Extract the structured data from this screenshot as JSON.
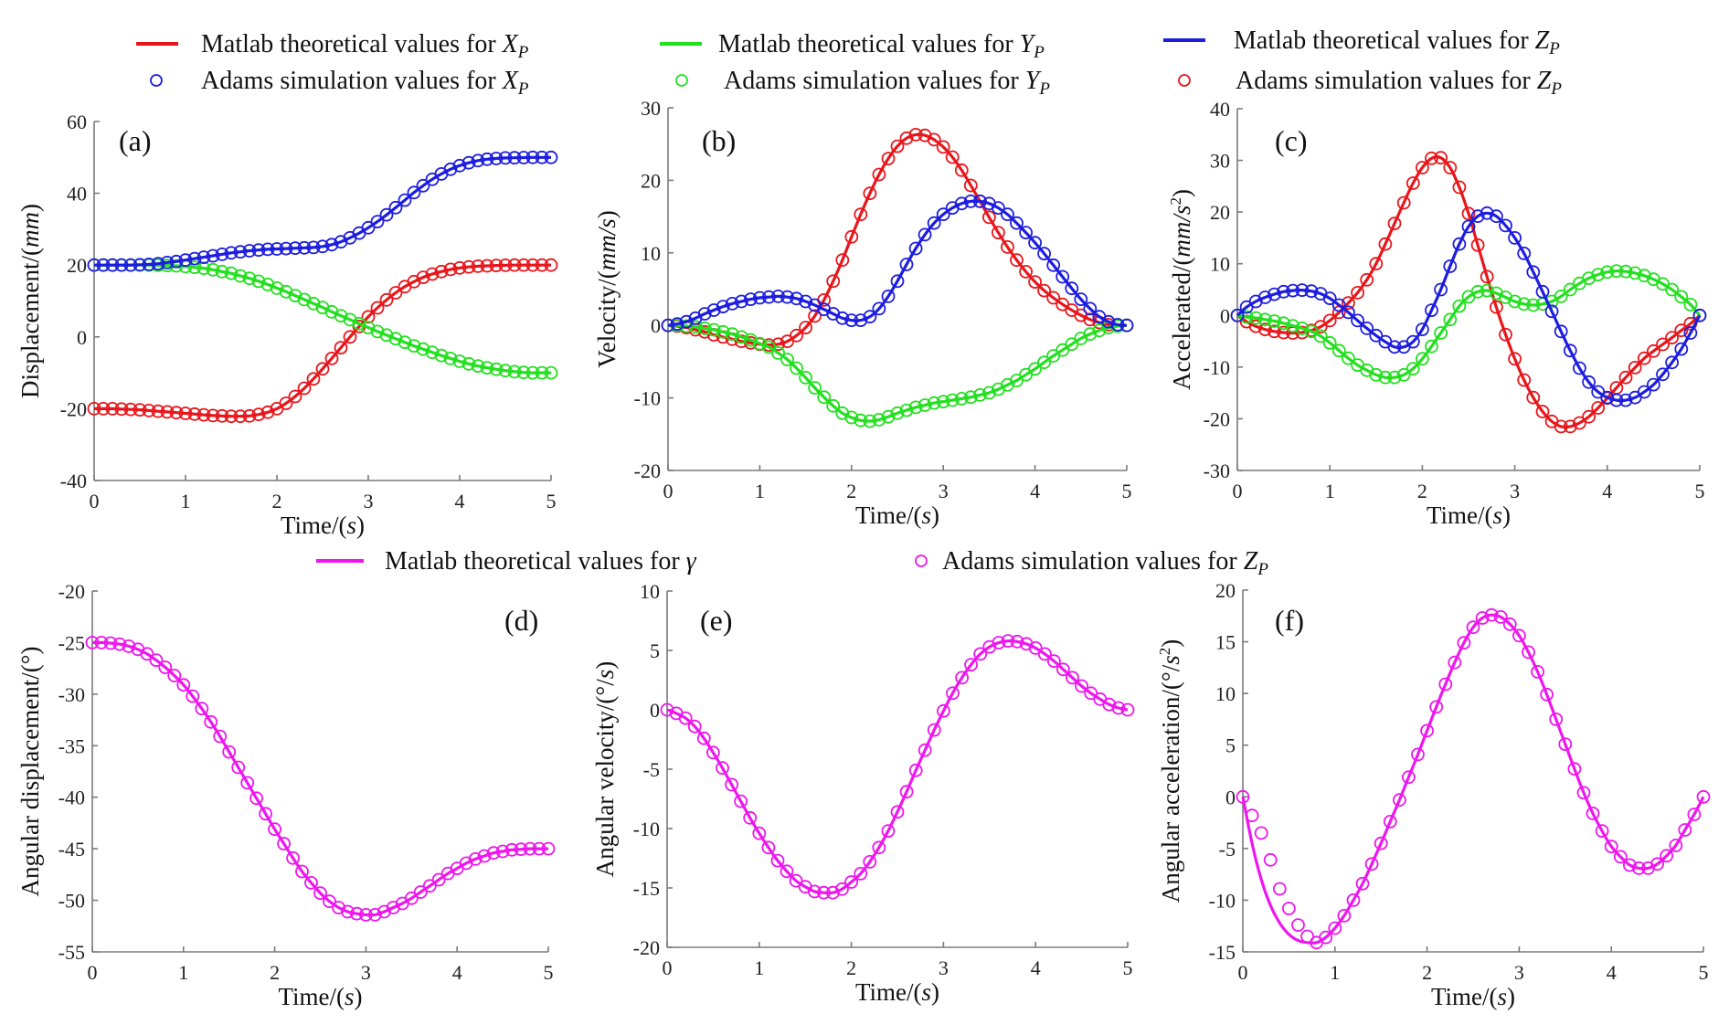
{
  "legend_top": [
    {
      "kind": "line",
      "color": "#e8161b",
      "text": "Matlab theoretical values for ",
      "var": "X",
      "sub": "P"
    },
    {
      "kind": "marker",
      "color": "#1d1de0",
      "text": "Adams simulation values for ",
      "var": "X",
      "sub": "P"
    },
    {
      "kind": "line",
      "color": "#22e01e",
      "text": "Matlab theoretical values for ",
      "var": "Y",
      "sub": "P"
    },
    {
      "kind": "marker",
      "color": "#22e01e",
      "text": "Adams simulation values for ",
      "var": "Y",
      "sub": "P"
    },
    {
      "kind": "line",
      "color": "#1d1de0",
      "text": "Matlab theoretical values for ",
      "var": "Z",
      "sub": "P"
    },
    {
      "kind": "marker",
      "color": "#e8161b",
      "text": "Adams simulation values for ",
      "var": "Z",
      "sub": "P"
    }
  ],
  "legend_bottom": [
    {
      "kind": "line",
      "color": "#ee16ee",
      "text": "Matlab theoretical values for ",
      "var": "γ",
      "sub": ""
    },
    {
      "kind": "marker",
      "color": "#ee16ee",
      "text": "Adams simulation values for ",
      "var": "Z",
      "sub": "P"
    }
  ],
  "chart_data": [
    {
      "id": "a",
      "type": "line",
      "panel_label": "(a)",
      "title": "",
      "xlabel": "Time/(s)",
      "ylabel": "Displacement/(mm)",
      "xlim": [
        0,
        5
      ],
      "ylim": [
        -40,
        60
      ],
      "xticks": [
        0,
        1,
        2,
        3,
        4,
        5
      ],
      "yticks": [
        -40,
        -20,
        0,
        20,
        40,
        60
      ],
      "x_step": 0.1,
      "series": [
        {
          "name": "X_P",
          "color": "#e8161b",
          "marker_color": "#e8161b",
          "values": [
            -20,
            -20,
            -20,
            -20.1,
            -20.2,
            -20.3,
            -20.5,
            -20.7,
            -20.9,
            -21.1,
            -21.3,
            -21.5,
            -21.7,
            -21.9,
            -22,
            -22.1,
            -22.1,
            -22,
            -21.6,
            -21,
            -20,
            -18.5,
            -16.6,
            -14.3,
            -11.7,
            -8.9,
            -6,
            -3,
            0,
            2.9,
            5.6,
            8.1,
            10.3,
            12.3,
            14,
            15.4,
            16.6,
            17.5,
            18.2,
            18.8,
            19.2,
            19.5,
            19.7,
            19.8,
            19.9,
            19.95,
            20,
            20,
            20,
            20,
            20
          ]
        },
        {
          "name": "Y_P",
          "color": "#22e01e",
          "marker_color": "#22e01e",
          "values": [
            20,
            20,
            20,
            20,
            20,
            20,
            20,
            19.95,
            19.9,
            19.8,
            19.6,
            19.4,
            19.1,
            18.7,
            18.2,
            17.7,
            17,
            16.3,
            15.5,
            14.6,
            13.6,
            12.6,
            11.5,
            10.4,
            9.3,
            8.2,
            7,
            5.9,
            4.8,
            3.7,
            2.6,
            1.5,
            0.5,
            -0.5,
            -1.5,
            -2.5,
            -3.4,
            -4.3,
            -5.2,
            -6,
            -6.8,
            -7.5,
            -8.1,
            -8.6,
            -9,
            -9.4,
            -9.7,
            -9.9,
            -10,
            -10,
            -10
          ]
        },
        {
          "name": "Z_P",
          "color": "#1d1de0",
          "marker_color": "#1d1de0",
          "values": [
            20,
            20,
            20,
            20,
            20,
            20.1,
            20.2,
            20.4,
            20.7,
            21,
            21.4,
            21.8,
            22.2,
            22.6,
            23,
            23.4,
            23.7,
            24,
            24.2,
            24.4,
            24.5,
            24.6,
            24.7,
            24.8,
            24.9,
            25.2,
            25.7,
            26.5,
            27.6,
            28.9,
            30.4,
            32.1,
            34,
            36,
            38.1,
            40.2,
            42.1,
            43.9,
            45.4,
            46.7,
            47.7,
            48.5,
            49.1,
            49.5,
            49.7,
            49.85,
            49.9,
            49.95,
            50,
            50,
            50
          ]
        }
      ]
    },
    {
      "id": "b",
      "type": "line",
      "panel_label": "(b)",
      "title": "",
      "xlabel": "Time/(s)",
      "ylabel": "Velocity/(mm/s)",
      "xlim": [
        0,
        5
      ],
      "ylim": [
        -20,
        30
      ],
      "xticks": [
        0,
        1,
        2,
        3,
        4,
        5
      ],
      "yticks": [
        -20,
        -10,
        0,
        10,
        20,
        30
      ],
      "x_step": 0.1,
      "series": [
        {
          "name": "X_P",
          "color": "#e8161b",
          "marker_color": "#e8161b",
          "values": [
            0,
            -0.1,
            -0.3,
            -0.6,
            -0.9,
            -1.3,
            -1.6,
            -1.9,
            -2.2,
            -2.4,
            -2.6,
            -2.7,
            -2.6,
            -2.2,
            -1.4,
            -0.3,
            1.3,
            3.5,
            6.1,
            9,
            12.2,
            15.3,
            18.2,
            20.8,
            23,
            24.7,
            25.8,
            26.3,
            26.2,
            25.6,
            24.6,
            23.2,
            21.4,
            19.3,
            17.1,
            14.9,
            12.8,
            10.8,
            9,
            7.4,
            6,
            4.8,
            3.8,
            2.9,
            2.1,
            1.4,
            0.8,
            0.4,
            0.1,
            0,
            0
          ]
        },
        {
          "name": "Y_P",
          "color": "#22e01e",
          "marker_color": "#22e01e",
          "values": [
            0,
            0,
            -0.1,
            -0.2,
            -0.4,
            -0.6,
            -0.9,
            -1.2,
            -1.6,
            -2,
            -2.5,
            -3,
            -3.8,
            -4.7,
            -5.9,
            -7.2,
            -8.6,
            -9.9,
            -11.1,
            -12.1,
            -12.7,
            -13.1,
            -13.2,
            -13,
            -12.6,
            -12.1,
            -11.7,
            -11.3,
            -11,
            -10.7,
            -10.5,
            -10.3,
            -10.1,
            -9.9,
            -9.6,
            -9.3,
            -8.8,
            -8.2,
            -7.6,
            -6.8,
            -6,
            -5.1,
            -4.2,
            -3.4,
            -2.6,
            -1.8,
            -1.2,
            -0.7,
            -0.3,
            -0.1,
            0
          ]
        },
        {
          "name": "Z_P",
          "color": "#1d1de0",
          "marker_color": "#1d1de0",
          "values": [
            0,
            0.2,
            0.5,
            1,
            1.6,
            2.1,
            2.6,
            3,
            3.3,
            3.6,
            3.8,
            3.9,
            4,
            3.9,
            3.7,
            3.3,
            2.8,
            2.2,
            1.6,
            1,
            0.7,
            0.7,
            1.2,
            2.3,
            4,
            6.1,
            8.4,
            10.6,
            12.5,
            14.1,
            15.3,
            16.2,
            16.8,
            17.1,
            17.1,
            16.8,
            16.2,
            15.3,
            14.1,
            12.8,
            11.4,
            9.9,
            8.3,
            6.7,
            5.1,
            3.6,
            2.3,
            1.2,
            0.5,
            0.1,
            0
          ]
        }
      ]
    },
    {
      "id": "c",
      "type": "line",
      "panel_label": "(c)",
      "title": "",
      "xlabel": "Time/(s)",
      "ylabel": "Accelerated/(mm/s²)",
      "xlim": [
        0,
        5
      ],
      "ylim": [
        -30,
        40
      ],
      "xticks": [
        0,
        1,
        2,
        3,
        4,
        5
      ],
      "yticks": [
        -30,
        -20,
        -10,
        0,
        10,
        20,
        30,
        40
      ],
      "x_step": 0.1,
      "series": [
        {
          "name": "X_P",
          "color": "#e8161b",
          "marker_color": "#e8161b",
          "values": [
            0,
            -1.2,
            -2.1,
            -2.7,
            -3.1,
            -3.3,
            -3.4,
            -3.3,
            -2.9,
            -2.2,
            -1,
            0.6,
            2.4,
            4.4,
            6.9,
            10,
            13.8,
            17.8,
            21.8,
            25.6,
            28.6,
            30.4,
            30.5,
            28.6,
            24.8,
            19.7,
            13.6,
            7.5,
            1.6,
            -3.7,
            -8.4,
            -12.5,
            -15.9,
            -18.6,
            -20.5,
            -21.5,
            -21.5,
            -20.8,
            -19.6,
            -17.9,
            -16,
            -14,
            -12,
            -10.1,
            -8.3,
            -6.9,
            -5.6,
            -4.3,
            -2.9,
            -1.6,
            0
          ]
        },
        {
          "name": "Y_P",
          "color": "#22e01e",
          "marker_color": "#22e01e",
          "values": [
            0,
            -0.3,
            -0.5,
            -0.8,
            -1.1,
            -1.5,
            -2,
            -2.5,
            -3.1,
            -4,
            -5.3,
            -6.8,
            -8.3,
            -9.6,
            -10.6,
            -11.5,
            -12,
            -12,
            -11.5,
            -10.3,
            -8.4,
            -6,
            -3.4,
            -0.8,
            1.8,
            3.6,
            4.6,
            4.8,
            4.3,
            3.5,
            2.7,
            2.2,
            2,
            2.2,
            2.7,
            3.7,
            5,
            6.2,
            7.2,
            7.9,
            8.4,
            8.6,
            8.5,
            8.2,
            7.7,
            7,
            6.1,
            5,
            3.6,
            2.1,
            0
          ]
        },
        {
          "name": "Z_P",
          "color": "#1d1de0",
          "marker_color": "#1d1de0",
          "values": [
            0,
            1.6,
            2.7,
            3.5,
            4.1,
            4.6,
            4.8,
            4.9,
            4.7,
            4.2,
            3.3,
            2,
            0.6,
            -1,
            -2.5,
            -3.9,
            -5.1,
            -6.1,
            -6.1,
            -5.1,
            -2.7,
            1,
            5,
            9.5,
            13.8,
            17.2,
            19.2,
            19.8,
            19.2,
            17.4,
            15,
            12,
            8.4,
            4.6,
            0.8,
            -3.1,
            -6.8,
            -10.2,
            -12.9,
            -14.8,
            -15.9,
            -16.4,
            -16.4,
            -15.9,
            -14.8,
            -13.4,
            -11.4,
            -9.1,
            -6.5,
            -3.4,
            0
          ]
        }
      ]
    },
    {
      "id": "d",
      "type": "line",
      "panel_label": "(d)",
      "title": "",
      "xlabel": "Time/(s)",
      "ylabel": "Angular displacement/(°)",
      "xlim": [
        0,
        5
      ],
      "ylim": [
        -55,
        -20
      ],
      "xticks": [
        0,
        1,
        2,
        3,
        4,
        5
      ],
      "yticks": [
        -55,
        -50,
        -45,
        -40,
        -35,
        -30,
        -25,
        -20
      ],
      "x_step": 0.1,
      "series": [
        {
          "name": "γ",
          "color": "#ee16ee",
          "marker_color": "#ee16ee",
          "values": [
            -25,
            -25,
            -25.05,
            -25.15,
            -25.35,
            -25.65,
            -26.1,
            -26.7,
            -27.4,
            -28.2,
            -29.1,
            -30.2,
            -31.4,
            -32.7,
            -34.1,
            -35.6,
            -37.1,
            -38.6,
            -40.1,
            -41.6,
            -43.1,
            -44.5,
            -45.9,
            -47.2,
            -48.3,
            -49.3,
            -50.1,
            -50.7,
            -51.1,
            -51.3,
            -51.4,
            -51.4,
            -51.1,
            -50.7,
            -50.3,
            -49.8,
            -49.2,
            -48.6,
            -48,
            -47.4,
            -46.9,
            -46.4,
            -46,
            -45.7,
            -45.4,
            -45.25,
            -45.1,
            -45.05,
            -45,
            -45,
            -45
          ]
        }
      ]
    },
    {
      "id": "e",
      "type": "line",
      "panel_label": "(e)",
      "title": "",
      "xlabel": "Time/(s)",
      "ylabel": "Angular velocity/(°/s)",
      "xlim": [
        0,
        5
      ],
      "ylim": [
        -20,
        10
      ],
      "xticks": [
        0,
        1,
        2,
        3,
        4,
        5
      ],
      "yticks": [
        -20,
        -15,
        -10,
        -5,
        0,
        5,
        10
      ],
      "x_step": 0.1,
      "series": [
        {
          "name": "γ",
          "color": "#ee16ee",
          "marker_color": "#ee16ee",
          "values": [
            0,
            -0.3,
            -0.7,
            -1.4,
            -2.4,
            -3.6,
            -4.9,
            -6.3,
            -7.7,
            -9.1,
            -10.4,
            -11.6,
            -12.7,
            -13.6,
            -14.4,
            -14.9,
            -15.3,
            -15.4,
            -15.4,
            -15.1,
            -14.5,
            -13.8,
            -12.8,
            -11.6,
            -10.2,
            -8.6,
            -6.9,
            -5.1,
            -3.4,
            -1.7,
            -0.1,
            1.4,
            2.7,
            3.8,
            4.7,
            5.3,
            5.65,
            5.8,
            5.75,
            5.55,
            5.2,
            4.7,
            4.1,
            3.4,
            2.7,
            2,
            1.4,
            0.9,
            0.45,
            0.15,
            0
          ]
        }
      ]
    },
    {
      "id": "f",
      "type": "line",
      "panel_label": "(f)",
      "title": "",
      "xlabel": "Time/(s)",
      "ylabel": "Angular acceleration/(°/s²)",
      "xlim": [
        0,
        5
      ],
      "ylim": [
        -15,
        20
      ],
      "xticks": [
        0,
        1,
        2,
        3,
        4,
        5
      ],
      "yticks": [
        -15,
        -10,
        -5,
        0,
        5,
        10,
        15,
        20
      ],
      "x_step": 0.1,
      "series": [
        {
          "name": "γ (Matlab)",
          "color": "#ee16ee",
          "marker_color": null,
          "values": [
            0,
            -4.5,
            -8,
            -10.5,
            -12.2,
            -13.3,
            -13.9,
            -14.1,
            -14.1,
            -13.6,
            -12.7,
            -11.5,
            -10,
            -8.4,
            -6.5,
            -4.5,
            -2.4,
            -0.3,
            1.9,
            4.1,
            6.4,
            8.7,
            10.9,
            13,
            14.9,
            16.4,
            17.3,
            17.6,
            17.4,
            16.7,
            15.6,
            14,
            12.1,
            9.9,
            7.5,
            5.1,
            2.7,
            0.4,
            -1.6,
            -3.3,
            -4.8,
            -5.8,
            -6.6,
            -6.9,
            -6.9,
            -6.5,
            -5.7,
            -4.7,
            -3.2,
            -1.7,
            0
          ]
        },
        {
          "name": "Z_P (Adams)",
          "color": null,
          "marker_color": "#ee16ee",
          "values": [
            0,
            -1.8,
            -3.5,
            -6.1,
            -8.9,
            -10.8,
            -12.4,
            -13.5,
            -14.1,
            -13.6,
            -12.7,
            -11.5,
            -10,
            -8.4,
            -6.5,
            -4.5,
            -2.4,
            -0.3,
            1.9,
            4.1,
            6.4,
            8.7,
            10.9,
            13,
            14.9,
            16.4,
            17.3,
            17.6,
            17.4,
            16.7,
            15.6,
            14,
            12.1,
            9.9,
            7.5,
            5.1,
            2.7,
            0.4,
            -1.6,
            -3.3,
            -4.8,
            -5.8,
            -6.6,
            -6.9,
            -6.9,
            -6.5,
            -5.7,
            -4.7,
            -3.2,
            -1.7,
            0
          ]
        }
      ]
    }
  ]
}
